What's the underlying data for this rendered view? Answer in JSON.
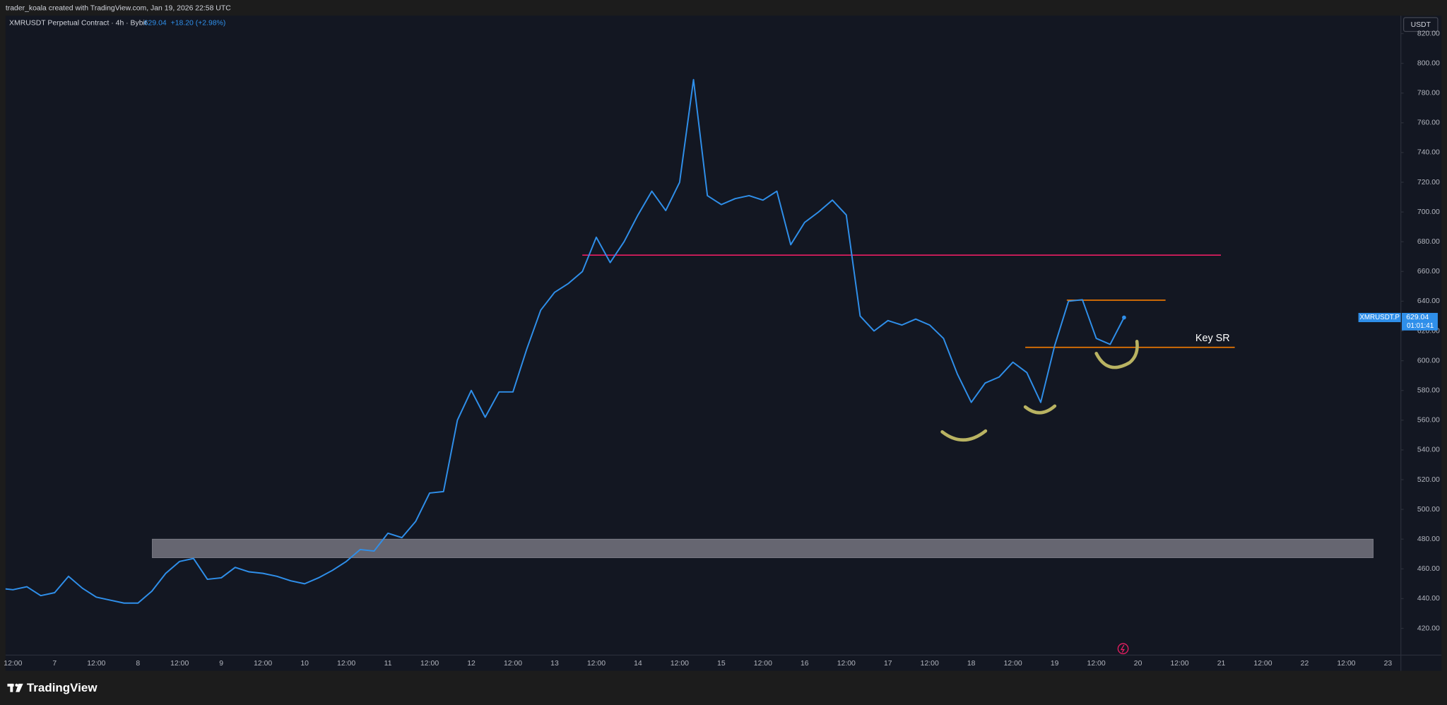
{
  "header": {
    "caption": "trader_koala created with TradingView.com, Jan 19, 2026 22:58 UTC",
    "brand": "TradingView"
  },
  "chart_data": {
    "type": "line",
    "title": "XMRUSDT Perpetual Contract · 4h · Bybit",
    "change_label": "+18.20 (+2.98%)",
    "currency": "USDT",
    "countdown": "01:01:41",
    "categories": [
      null,
      "12:00",
      null,
      null,
      "7",
      null,
      null,
      "12:00",
      null,
      null,
      "8",
      null,
      null,
      "12:00",
      null,
      null,
      "9",
      null,
      null,
      "12:00",
      null,
      null,
      "10",
      null,
      null,
      "12:00",
      null,
      null,
      "11",
      null,
      null,
      "12:00",
      null,
      null,
      "12",
      null,
      null,
      "12:00",
      null,
      null,
      "13",
      null,
      null,
      "12:00",
      null,
      null,
      "14",
      null,
      null,
      "12:00",
      null,
      null,
      "15",
      null,
      null,
      "12:00",
      null,
      null,
      "16",
      null,
      null,
      "12:00",
      null,
      null,
      "17",
      null,
      null,
      "12:00",
      null,
      null,
      "18",
      null,
      null,
      "12:00",
      null,
      null,
      "19",
      null,
      null,
      "12:00",
      null,
      null,
      "20",
      null,
      null,
      "12:00",
      null,
      null,
      "21",
      null,
      null,
      "12:00",
      null,
      null,
      "22",
      null,
      null,
      "12:00",
      null,
      null,
      "23"
    ],
    "series": [
      {
        "name": "XMRUSDT.P",
        "color": "#2f8fea",
        "values": [
          447,
          446,
          448,
          442,
          444,
          455,
          447,
          441,
          439,
          437,
          437,
          445,
          457,
          465,
          467,
          453,
          454,
          461,
          458,
          457,
          455,
          452,
          450,
          454,
          459,
          465,
          473,
          472,
          484,
          481,
          492,
          511,
          512,
          560,
          580,
          562,
          579,
          579,
          608,
          634,
          646,
          652,
          660,
          683,
          666,
          680,
          698,
          714,
          701,
          720,
          789,
          711,
          705,
          709,
          711,
          708,
          714,
          678,
          693,
          700,
          708,
          698,
          630,
          620,
          627,
          624,
          628,
          624,
          615,
          591,
          572,
          585,
          589,
          599,
          592,
          572,
          610,
          640,
          641,
          615,
          611,
          629.04,
          null,
          null,
          null,
          null,
          null,
          null,
          null,
          null,
          null,
          null,
          null,
          null,
          null,
          null,
          null,
          null,
          null,
          null,
          null
        ]
      }
    ],
    "ylim": [
      402,
      832
    ],
    "yticks": [
      {
        "value": 420,
        "label": "420.00"
      },
      {
        "value": 440,
        "label": "440.00"
      },
      {
        "value": 460,
        "label": "460.00"
      },
      {
        "value": 480,
        "label": "480.00"
      },
      {
        "value": 500,
        "label": "500.00"
      },
      {
        "value": 520,
        "label": "520.00"
      },
      {
        "value": 540,
        "label": "540.00"
      },
      {
        "value": 560,
        "label": "560.00"
      },
      {
        "value": 580,
        "label": "580.00"
      },
      {
        "value": 600,
        "label": "600.00"
      },
      {
        "value": 620,
        "label": "620.00"
      },
      {
        "value": 640,
        "label": "640.00"
      },
      {
        "value": 660,
        "label": "660.00"
      },
      {
        "value": 680,
        "label": "680.00"
      },
      {
        "value": 700,
        "label": "700.00"
      },
      {
        "value": 720,
        "label": "720.00"
      },
      {
        "value": 740,
        "label": "740.00"
      },
      {
        "value": 760,
        "label": "760.00"
      },
      {
        "value": 780,
        "label": "780.00"
      },
      {
        "value": 800,
        "label": "800.00"
      },
      {
        "value": 820,
        "label": "820.00"
      }
    ],
    "drawings": [
      {
        "value": 671,
        "color": "#e91e63"
      },
      {
        "value": 640.7,
        "color": "#f57c00"
      },
      {
        "value": 609,
        "color": "#f57c00"
      }
    ],
    "zones": [
      {
        "from": 467.5,
        "to": 480,
        "color": "#6b6b76"
      }
    ],
    "annotations": [
      {
        "text": "Key SR"
      }
    ]
  }
}
